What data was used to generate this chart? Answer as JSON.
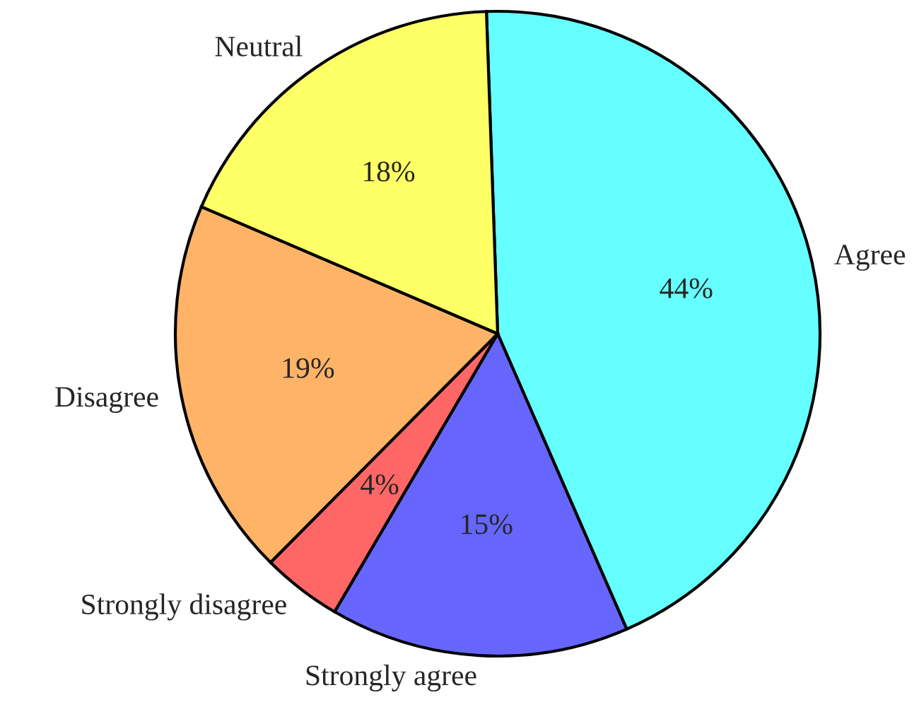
{
  "chart_data": {
    "type": "pie",
    "categories": [
      "Agree",
      "Strongly agree",
      "Strongly disagree",
      "Disagree",
      "Neutral"
    ],
    "values": [
      44,
      15,
      4,
      19,
      18
    ],
    "value_labels": [
      "44%",
      "15%",
      "4%",
      "19%",
      "18%"
    ],
    "colors": [
      "#66ffff",
      "#6666ff",
      "#ff6666",
      "#ffb366",
      "#ffff66"
    ]
  }
}
